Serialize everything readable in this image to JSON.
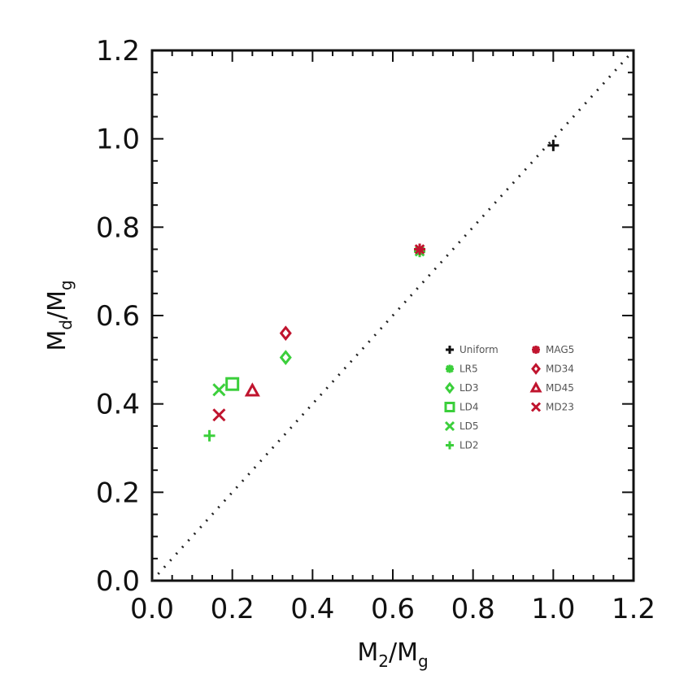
{
  "chart_data": {
    "type": "scatter",
    "title": "",
    "xlabel": {
      "main": "M",
      "sub1": "2",
      "slash": "/",
      "main2": "M",
      "sub2": "g"
    },
    "ylabel": {
      "main": "M",
      "sub1": "d",
      "slash": "/",
      "main2": "M",
      "sub2": "g"
    },
    "xlim": [
      0.0,
      1.2
    ],
    "ylim": [
      0.0,
      1.2
    ],
    "xticks": [
      "0.0",
      "0.2",
      "0.4",
      "0.6",
      "0.8",
      "1.0",
      "1.2"
    ],
    "yticks": [
      "0.0",
      "0.2",
      "0.4",
      "0.6",
      "0.8",
      "1.0",
      "1.2"
    ],
    "grid": false,
    "reference_line": {
      "style": "dotted",
      "slope": 1
    },
    "legend_position": "center-right",
    "colors": {
      "black": "#111111",
      "green": "#3bcf3b",
      "red": "#c0142e"
    },
    "series": [
      {
        "name": "Uniform",
        "marker": "plus",
        "color": "black",
        "x": [
          1.0
        ],
        "y": [
          0.985
        ]
      },
      {
        "name": "LR5",
        "marker": "asterisk",
        "color": "green",
        "x": [
          0.667
        ],
        "y": [
          0.745
        ]
      },
      {
        "name": "LD3",
        "marker": "diamond",
        "color": "green",
        "x": [
          0.333
        ],
        "y": [
          0.505
        ]
      },
      {
        "name": "LD4",
        "marker": "square",
        "color": "green",
        "x": [
          0.2
        ],
        "y": [
          0.445
        ]
      },
      {
        "name": "LD5",
        "marker": "x",
        "color": "green",
        "x": [
          0.167
        ],
        "y": [
          0.432
        ]
      },
      {
        "name": "LD2",
        "marker": "plus",
        "color": "green",
        "x": [
          0.143
        ],
        "y": [
          0.328
        ]
      },
      {
        "name": "MAG5",
        "marker": "asterisk",
        "color": "red",
        "x": [
          0.667
        ],
        "y": [
          0.75
        ]
      },
      {
        "name": "MD34",
        "marker": "diamond",
        "color": "red",
        "x": [
          0.333
        ],
        "y": [
          0.56
        ]
      },
      {
        "name": "MD45",
        "marker": "triangle",
        "color": "red",
        "x": [
          0.25
        ],
        "y": [
          0.43
        ]
      },
      {
        "name": "MD23",
        "marker": "x",
        "color": "red",
        "x": [
          0.167
        ],
        "y": [
          0.375
        ]
      }
    ],
    "legend": {
      "col1": [
        "Uniform",
        "LR5",
        "LD3",
        "LD4",
        "LD5",
        "LD2"
      ],
      "col2": [
        "MAG5",
        "MD34",
        "MD45",
        "MD23"
      ]
    }
  }
}
